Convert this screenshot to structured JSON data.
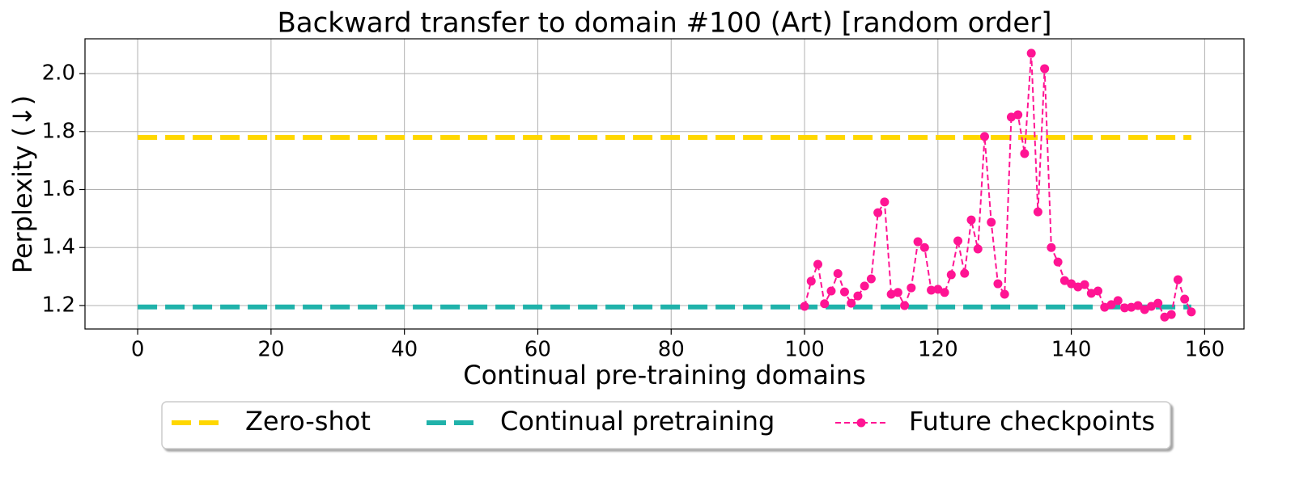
{
  "chart_data": {
    "type": "line",
    "title": "Backward transfer to domain #100 (Art) [random order]",
    "x_label": "Continual pre-training domains",
    "y_label": "Perplexity (↓)",
    "xlim": [
      -7.9,
      165.9
    ],
    "ylim": [
      1.119,
      2.12
    ],
    "xticks": [
      0,
      20,
      40,
      60,
      80,
      100,
      120,
      140,
      160
    ],
    "yticks": [
      1.2,
      1.4,
      1.6,
      1.8,
      {
        "value": 2,
        "label": "2.0"
      }
    ],
    "grid": true,
    "legend": "below",
    "series": [
      {
        "name": "Zero-shot",
        "color": "#FFD700",
        "linestyle": "dashed",
        "x": [
          0,
          158
        ],
        "values": [
          1.78,
          1.78
        ]
      },
      {
        "name": "Continual pretraining",
        "color": "#20B2AA",
        "linestyle": "dashed",
        "x": [
          0,
          158
        ],
        "values": [
          1.195,
          1.195
        ]
      },
      {
        "name": "Future checkpoints",
        "color": "#FF1493",
        "linestyle": "dashed",
        "marker": "o",
        "x": [
          100,
          101,
          102,
          103,
          104,
          105,
          106,
          107,
          108,
          109,
          110,
          111,
          112,
          113,
          114,
          115,
          116,
          117,
          118,
          119,
          120,
          121,
          122,
          123,
          124,
          125,
          126,
          127,
          128,
          129,
          130,
          131,
          132,
          133,
          134,
          135,
          136,
          137,
          138,
          139,
          140,
          141,
          142,
          143,
          144,
          145,
          146,
          147,
          148,
          149,
          150,
          151,
          152,
          153,
          154,
          155,
          156,
          157,
          158
        ],
        "values": [
          1.197,
          1.284,
          1.342,
          1.206,
          1.25,
          1.31,
          1.247,
          1.208,
          1.233,
          1.267,
          1.292,
          1.52,
          1.557,
          1.239,
          1.245,
          1.2,
          1.261,
          1.42,
          1.4,
          1.253,
          1.256,
          1.245,
          1.306,
          1.423,
          1.311,
          1.495,
          1.395,
          1.783,
          1.487,
          1.275,
          1.239,
          1.85,
          1.858,
          1.724,
          2.07,
          1.523,
          2.017,
          1.4,
          1.35,
          1.286,
          1.275,
          1.264,
          1.272,
          1.242,
          1.25,
          1.194,
          1.203,
          1.217,
          1.192,
          1.194,
          1.2,
          1.186,
          1.197,
          1.208,
          1.16,
          1.169,
          1.289,
          1.222,
          1.178
        ]
      }
    ]
  }
}
